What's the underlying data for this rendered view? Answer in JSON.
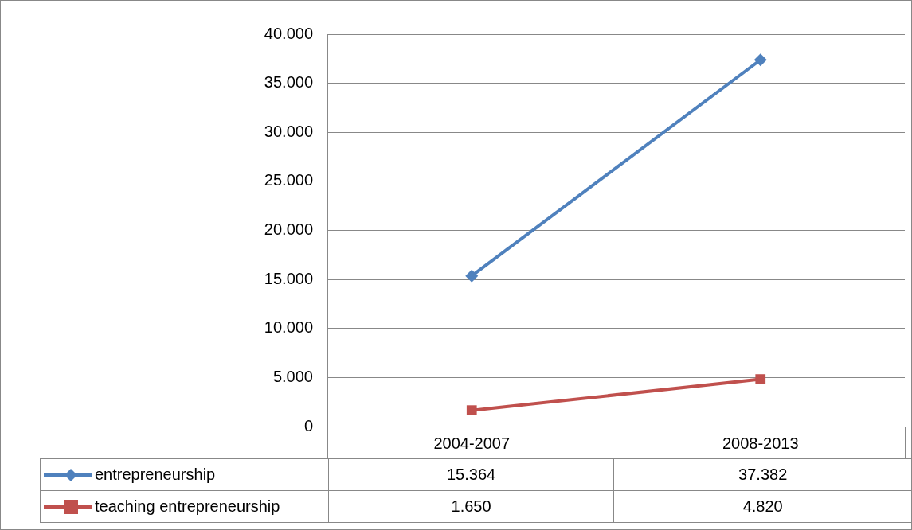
{
  "chart_data": {
    "type": "line",
    "categories": [
      "2004-2007",
      "2008-2013"
    ],
    "series": [
      {
        "name": "entrepreneurship",
        "color": "#4f81bd",
        "marker": "diamond",
        "values": [
          15364,
          37382
        ],
        "value_labels": [
          "15.364",
          "37.382"
        ]
      },
      {
        "name": "teaching entrepreneurship",
        "color": "#c0504d",
        "marker": "square",
        "values": [
          1650,
          4820
        ],
        "value_labels": [
          "1.650",
          "4.820"
        ]
      }
    ],
    "ylim": [
      0,
      40000
    ],
    "yticks": [
      0,
      {
        "value": 5000,
        "label": "5.000"
      },
      {
        "value": 10000,
        "label": "10.000"
      },
      {
        "value": 15000,
        "label": "15.000"
      },
      {
        "value": 20000,
        "label": "20.000"
      },
      {
        "value": 25000,
        "label": "25.000"
      },
      {
        "value": 30000,
        "label": "30.000"
      },
      {
        "value": 35000,
        "label": "35.000"
      },
      {
        "value": 40000,
        "label": "40.000"
      }
    ],
    "grid": "y",
    "legend": "bottom"
  }
}
